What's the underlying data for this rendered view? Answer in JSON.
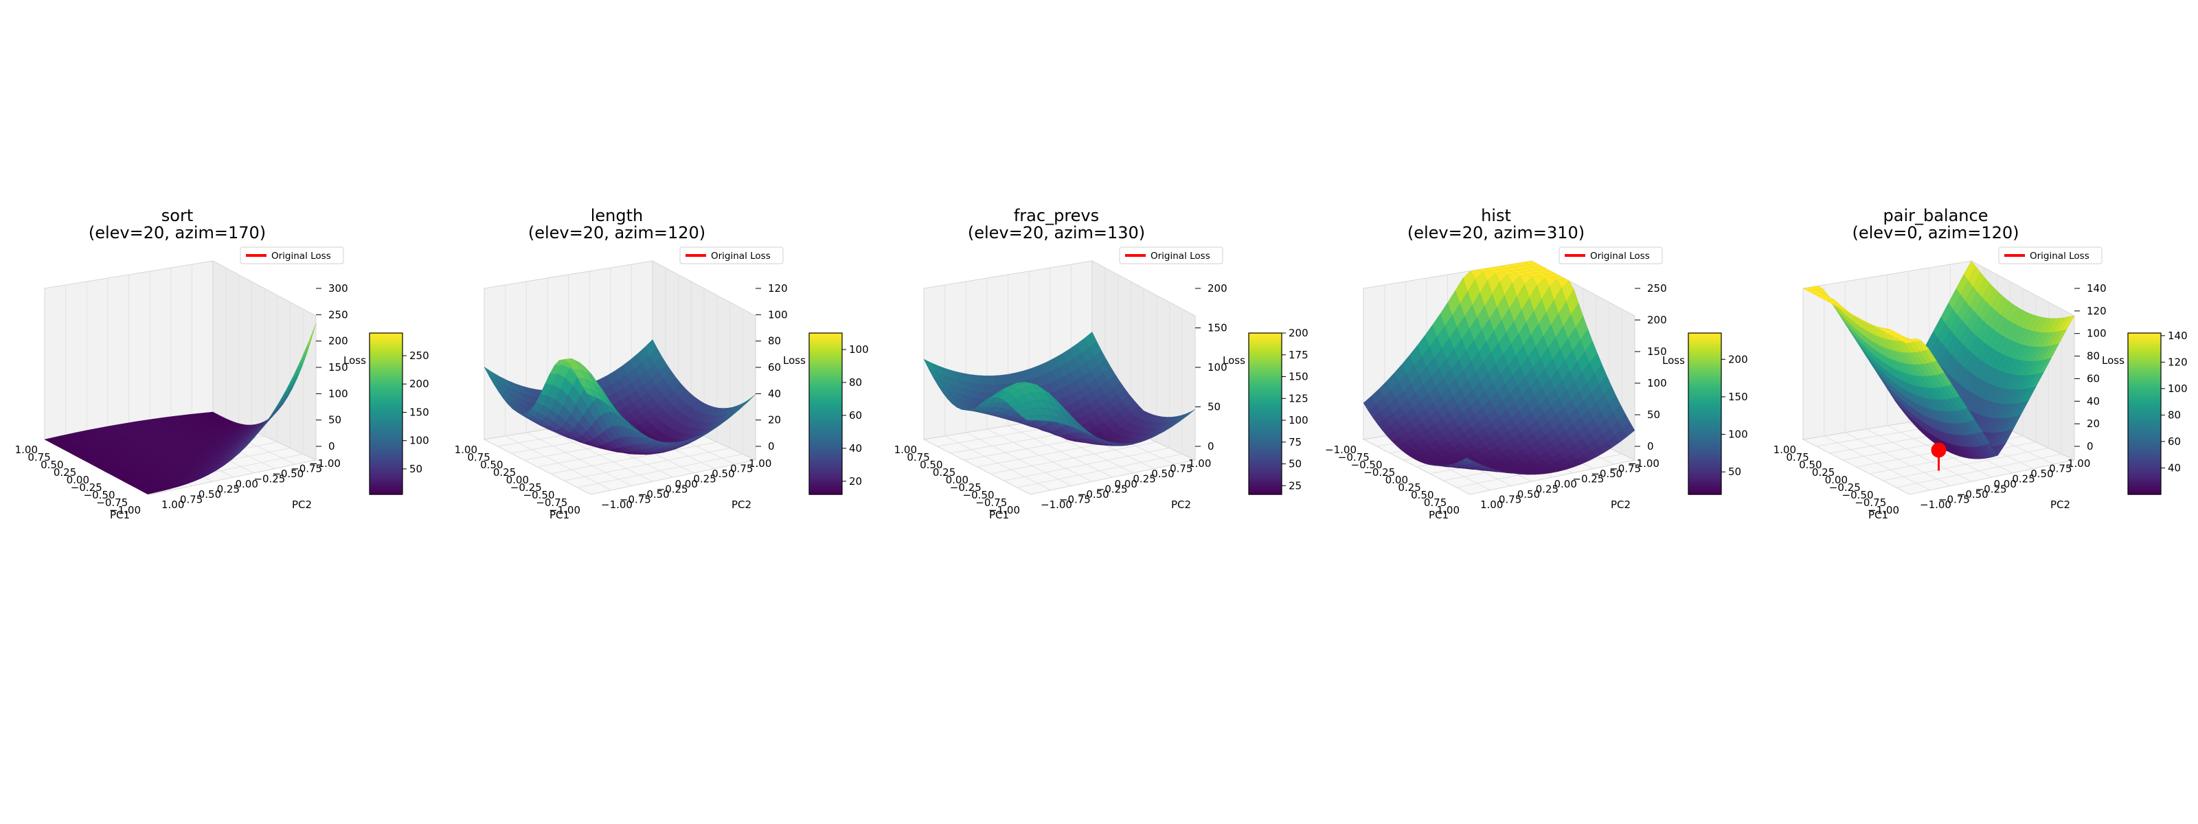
{
  "figure": {
    "background": "#ffffff",
    "colormap": "viridis",
    "pane_color": "#f2f2f2",
    "pane_edge_color": "#d6d6d6",
    "grid_color": "#e2e2e2"
  },
  "chart_data": [
    {
      "type": "surface3d",
      "name": "sort",
      "title": "sort",
      "subtitle": "(elev=20, azim=170)",
      "elev": 20,
      "azim": 170,
      "xlabel": "PC1",
      "ylabel": "PC2",
      "zlabel": "Loss",
      "xlim": [
        -1,
        1
      ],
      "ylim": [
        -1,
        1
      ],
      "xticks": [
        "1.00",
        "0.75",
        "0.50",
        "0.25",
        "0.00",
        "−0.25",
        "−0.50",
        "−0.75",
        "−1.00"
      ],
      "yticks": [
        "1.00",
        "0.75",
        "0.50",
        "0.25",
        "0.00",
        "−0.25",
        "−0.50",
        "−0.75",
        "−1.00"
      ],
      "zticks": [
        "0",
        "50",
        "100",
        "150",
        "200",
        "250",
        "300"
      ],
      "zlim": [
        0,
        330
      ],
      "colorbar_ticks": [
        "50",
        "100",
        "150",
        "200",
        "250"
      ],
      "colorbar_range": [
        5,
        290
      ],
      "legend": [
        "Original Loss"
      ],
      "original_loss_marker": false,
      "surface": {
        "min": 5,
        "max": 290
      }
    },
    {
      "type": "surface3d",
      "name": "length",
      "title": "length",
      "subtitle": "(elev=20, azim=120)",
      "elev": 20,
      "azim": 120,
      "xlabel": "PC1",
      "ylabel": "PC2",
      "zlabel": "Loss",
      "xlim": [
        -1,
        1
      ],
      "ylim": [
        -1,
        1
      ],
      "xticks": [
        "1.00",
        "0.75",
        "0.50",
        "0.25",
        "0.00",
        "−0.25",
        "−0.50",
        "−0.75",
        "−1.00"
      ],
      "yticks": [
        "−1.00",
        "−0.75",
        "−0.50",
        "−0.25",
        "0.00",
        "0.25",
        "0.50",
        "0.75",
        "1.00"
      ],
      "zticks": [
        "0",
        "20",
        "40",
        "60",
        "80",
        "100",
        "120"
      ],
      "zlim": [
        -5,
        120
      ],
      "colorbar_ticks": [
        "20",
        "40",
        "60",
        "80",
        "100"
      ],
      "colorbar_range": [
        12,
        110
      ],
      "legend": [
        "Original Loss"
      ],
      "original_loss_marker": false,
      "surface": {
        "min": 12,
        "max": 110
      }
    },
    {
      "type": "surface3d",
      "name": "frac_prevs",
      "title": "frac_prevs",
      "subtitle": "(elev=20, azim=130)",
      "elev": 20,
      "azim": 130,
      "xlabel": "PC1",
      "ylabel": "PC2",
      "zlabel": "Loss",
      "xlim": [
        -1,
        1
      ],
      "ylim": [
        -1,
        1
      ],
      "xticks": [
        "1.00",
        "0.75",
        "0.50",
        "0.25",
        "0.00",
        "−0.25",
        "−0.50",
        "−0.75",
        "−1.00"
      ],
      "yticks": [
        "−1.00",
        "−0.75",
        "−0.50",
        "−0.25",
        "0.00",
        "0.25",
        "0.50",
        "0.75",
        "1.00"
      ],
      "zticks": [
        "0",
        "50",
        "100",
        "150",
        "200"
      ],
      "zlim": [
        -10,
        210
      ],
      "colorbar_ticks": [
        "25",
        "50",
        "75",
        "100",
        "125",
        "150",
        "175",
        "200"
      ],
      "colorbar_range": [
        15,
        200
      ],
      "legend": [
        "Original Loss"
      ],
      "original_loss_marker": false,
      "surface": {
        "min": 15,
        "max": 200
      }
    },
    {
      "type": "surface3d",
      "name": "hist",
      "title": "hist",
      "subtitle": "(elev=20, azim=310)",
      "elev": 20,
      "azim": 310,
      "xlabel": "PC1",
      "ylabel": "PC2",
      "zlabel": "Loss",
      "xlim": [
        -1,
        1
      ],
      "ylim": [
        -1,
        1
      ],
      "xticks": [
        "−1.00",
        "−0.75",
        "−0.50",
        "−0.25",
        "0.00",
        "0.25",
        "0.50",
        "0.75",
        "1.00"
      ],
      "yticks": [
        "1.00",
        "0.75",
        "0.50",
        "0.25",
        "0.00",
        "−0.25",
        "−0.50",
        "−0.75",
        "−1.00"
      ],
      "zticks": [
        "0",
        "50",
        "100",
        "150",
        "200",
        "250"
      ],
      "zlim": [
        -10,
        260
      ],
      "colorbar_ticks": [
        "50",
        "100",
        "150",
        "200"
      ],
      "colorbar_range": [
        20,
        235
      ],
      "legend": [
        "Original Loss"
      ],
      "original_loss_marker": false,
      "surface": {
        "min": 20,
        "max": 235
      }
    },
    {
      "type": "surface3d",
      "name": "pair_balance",
      "title": "pair_balance",
      "subtitle": "(elev=0, azim=120)",
      "elev": 0,
      "azim": 120,
      "xlabel": "PC1",
      "ylabel": "PC2",
      "zlabel": "Loss",
      "xlim": [
        -1,
        1
      ],
      "ylim": [
        -1,
        1
      ],
      "xticks": [
        "1.00",
        "0.75",
        "0.50",
        "0.25",
        "0.00",
        "−0.25",
        "−0.50",
        "−0.75",
        "−1.00"
      ],
      "yticks": [
        "−1.00",
        "−0.75",
        "−0.50",
        "−0.25",
        "0.00",
        "0.25",
        "0.50",
        "0.75",
        "1.00"
      ],
      "zticks": [
        "0",
        "20",
        "40",
        "60",
        "80",
        "100",
        "120",
        "140"
      ],
      "zlim": [
        -10,
        145
      ],
      "colorbar_ticks": [
        "40",
        "60",
        "80",
        "100",
        "120",
        "140"
      ],
      "colorbar_range": [
        20,
        142
      ],
      "legend": [
        "Original Loss"
      ],
      "original_loss_marker": true,
      "surface": {
        "min": 20,
        "max": 142
      }
    }
  ]
}
